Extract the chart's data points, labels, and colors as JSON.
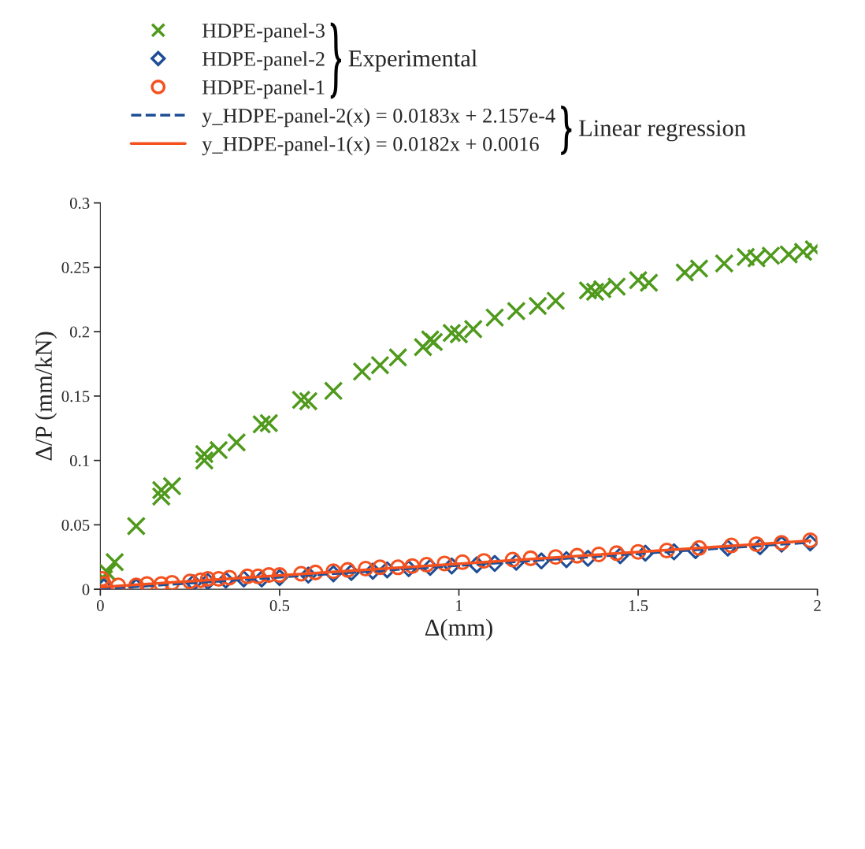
{
  "chart_data": {
    "type": "scatter",
    "xlabel": "Δ(mm)",
    "ylabel": "Δ/P (mm/kN)",
    "xlim": [
      0,
      2
    ],
    "ylim": [
      0,
      0.3
    ],
    "xticks": [
      0,
      0.5,
      1,
      1.5,
      2
    ],
    "yticks": [
      0,
      0.05,
      0.1,
      0.15,
      0.2,
      0.25,
      0.3
    ],
    "grid": false,
    "legend": "top left",
    "annotations": [
      "Experimental",
      "Linear regression"
    ],
    "series": [
      {
        "name": "HDPE-panel-3",
        "marker": "cross",
        "color": "#4f9a1c",
        "x": [
          0.01,
          0.02,
          0.04,
          0.1,
          0.17,
          0.17,
          0.2,
          0.29,
          0.29,
          0.33,
          0.38,
          0.45,
          0.47,
          0.56,
          0.58,
          0.65,
          0.73,
          0.78,
          0.83,
          0.9,
          0.92,
          0.93,
          0.98,
          1.0,
          1.04,
          1.1,
          1.16,
          1.22,
          1.27,
          1.36,
          1.38,
          1.4,
          1.44,
          1.5,
          1.53,
          1.63,
          1.67,
          1.74,
          1.8,
          1.83,
          1.87,
          1.92,
          1.96,
          1.99
        ],
        "values": [
          0.008,
          0.013,
          0.021,
          0.049,
          0.072,
          0.077,
          0.08,
          0.1,
          0.105,
          0.108,
          0.114,
          0.128,
          0.129,
          0.147,
          0.146,
          0.154,
          0.169,
          0.174,
          0.18,
          0.188,
          0.194,
          0.192,
          0.199,
          0.198,
          0.202,
          0.211,
          0.216,
          0.22,
          0.224,
          0.232,
          0.231,
          0.233,
          0.235,
          0.24,
          0.238,
          0.246,
          0.249,
          0.253,
          0.258,
          0.257,
          0.259,
          0.26,
          0.262,
          0.264
        ]
      },
      {
        "name": "HDPE-panel-2",
        "marker": "diamond",
        "color": "#1f4e96",
        "x": [
          0.01,
          0.1,
          0.2,
          0.26,
          0.3,
          0.35,
          0.4,
          0.45,
          0.5,
          0.58,
          0.65,
          0.7,
          0.76,
          0.8,
          0.86,
          0.92,
          0.98,
          1.05,
          1.1,
          1.16,
          1.23,
          1.3,
          1.36,
          1.45,
          1.52,
          1.6,
          1.66,
          1.75,
          1.84,
          1.9,
          1.98
        ],
        "values": [
          0.002,
          0.002,
          null,
          0.005,
          0.006,
          0.007,
          0.008,
          0.008,
          0.009,
          0.011,
          0.012,
          0.013,
          0.014,
          0.015,
          0.016,
          0.017,
          0.018,
          0.019,
          0.02,
          0.021,
          0.022,
          0.023,
          0.024,
          0.026,
          0.028,
          0.029,
          0.03,
          0.032,
          0.033,
          0.035,
          0.036
        ]
      },
      {
        "name": "HDPE-panel-1",
        "marker": "circle",
        "color": "#f4511e",
        "x": [
          0.005,
          0.01,
          0.05,
          0.1,
          0.13,
          0.17,
          0.2,
          0.25,
          0.28,
          0.3,
          0.33,
          0.36,
          0.41,
          0.44,
          0.47,
          0.5,
          0.56,
          0.6,
          0.65,
          0.69,
          0.74,
          0.78,
          0.83,
          0.87,
          0.91,
          0.96,
          1.01,
          1.07,
          1.15,
          1.2,
          1.27,
          1.33,
          1.39,
          1.44,
          1.5,
          1.58,
          1.67,
          1.76,
          1.83,
          1.9,
          1.98
        ],
        "values": [
          0.008,
          0.004,
          0.003,
          0.003,
          0.004,
          0.004,
          0.005,
          0.006,
          0.007,
          0.008,
          0.008,
          0.009,
          0.01,
          0.01,
          0.011,
          0.011,
          0.012,
          0.013,
          0.014,
          0.015,
          0.016,
          0.017,
          0.017,
          0.018,
          0.019,
          0.02,
          0.021,
          0.022,
          0.023,
          0.024,
          0.025,
          0.026,
          0.027,
          0.028,
          0.029,
          0.03,
          0.032,
          0.034,
          0.035,
          0.036,
          0.038
        ]
      },
      {
        "name": "y_HDPE-panel-2(x) = 0.0183x + 2.157e-4",
        "type": "line",
        "line_style": "dashed",
        "color": "#1f4e96",
        "x": [
          0,
          1.98
        ],
        "values": [
          0.0002,
          0.0364
        ]
      },
      {
        "name": "y_HDPE-panel-1(x) = 0.0182x + 0.0016",
        "type": "line",
        "line_style": "solid",
        "color": "#f4511e",
        "x": [
          0,
          1.98
        ],
        "values": [
          0.0016,
          0.0376
        ]
      }
    ]
  }
}
